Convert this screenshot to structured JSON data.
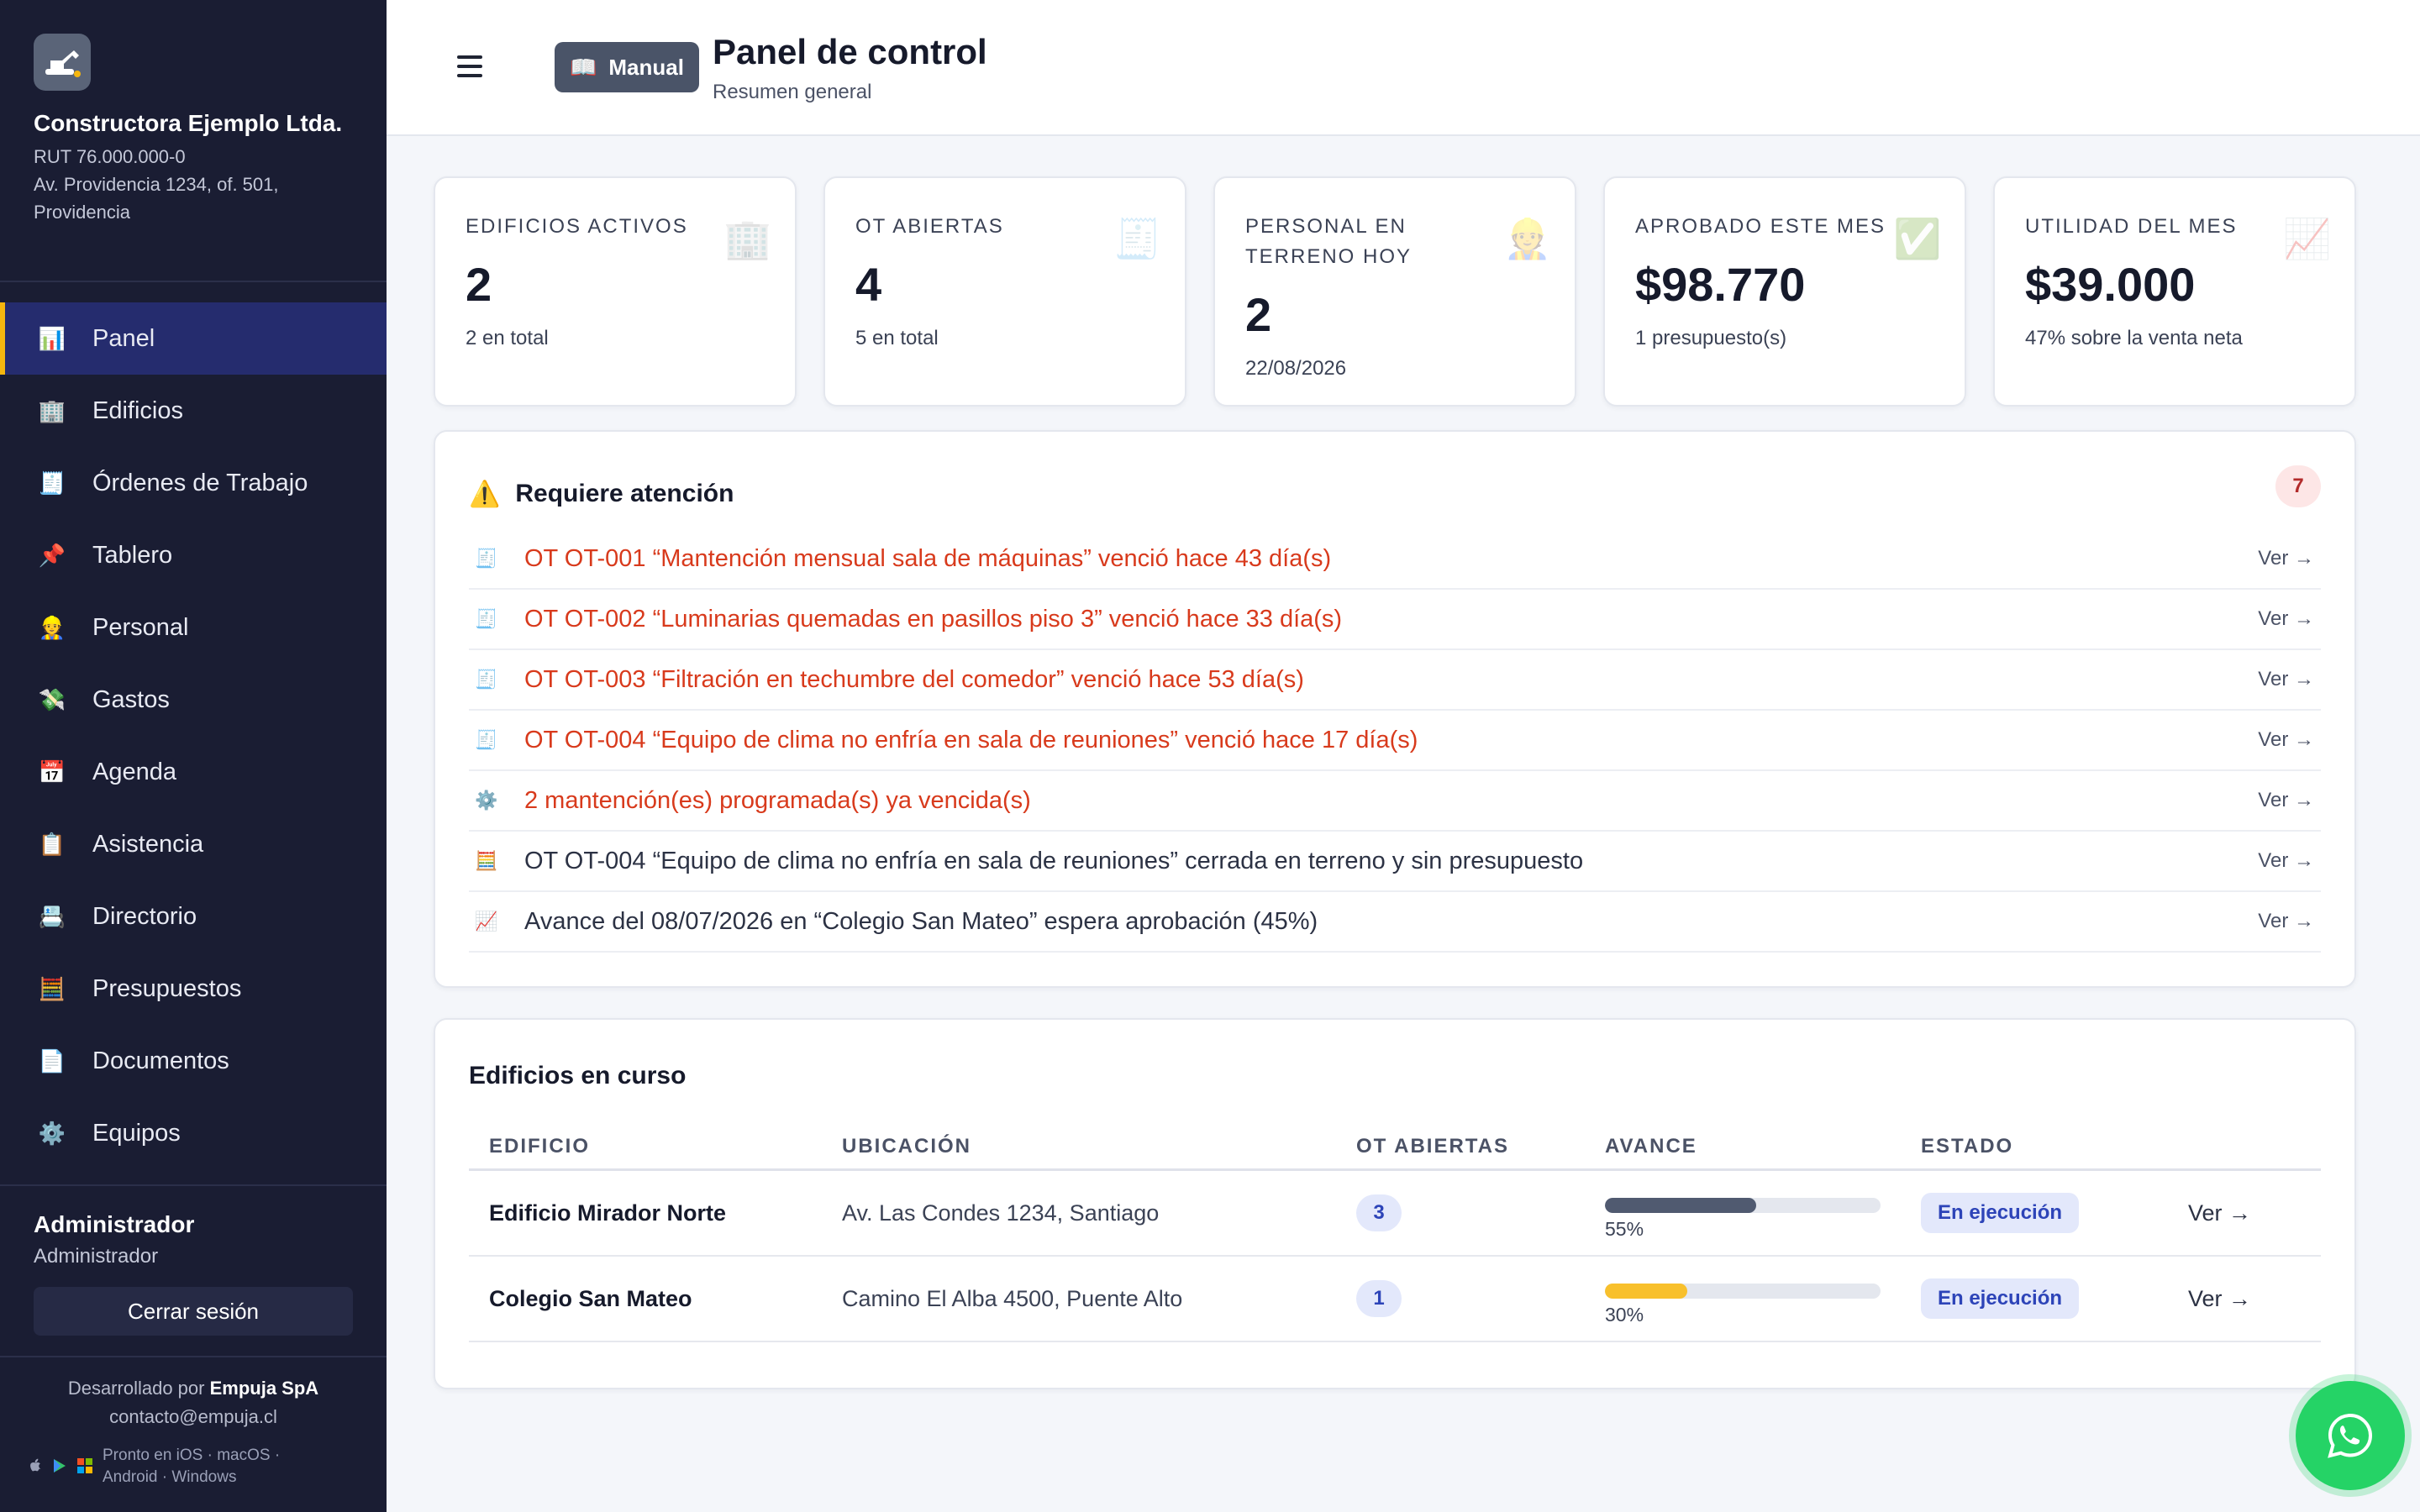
{
  "sidebar": {
    "company_name": "Constructora Ejemplo Ltda.",
    "rut": "RUT 76.000.000-0",
    "address": "Av. Providencia 1234, of. 501, Providencia",
    "nav": [
      {
        "label": "Panel",
        "icon": "bar-chart-icon",
        "active": true
      },
      {
        "label": "Edificios",
        "icon": "building-icon"
      },
      {
        "label": "Órdenes de Trabajo",
        "icon": "receipt-icon"
      },
      {
        "label": "Tablero",
        "icon": "pushpin-icon"
      },
      {
        "label": "Personal",
        "icon": "worker-icon"
      },
      {
        "label": "Gastos",
        "icon": "money-wings-icon"
      },
      {
        "label": "Agenda",
        "icon": "calendar-icon"
      },
      {
        "label": "Asistencia",
        "icon": "clipboard-icon"
      },
      {
        "label": "Directorio",
        "icon": "card-index-icon"
      },
      {
        "label": "Presupuestos",
        "icon": "abacus-icon"
      },
      {
        "label": "Documentos",
        "icon": "document-icon"
      },
      {
        "label": "Equipos",
        "icon": "gear-icon"
      }
    ],
    "user": {
      "name": "Administrador",
      "role": "Administrador",
      "logout_label": "Cerrar sesión"
    },
    "dev": {
      "prefix": "Desarrollado por",
      "company": "Empuja SpA",
      "email": "contacto@empuja.cl",
      "platforms_line1": "Pronto en iOS · macOS ·",
      "platforms_line2": "Android · Windows"
    }
  },
  "header": {
    "manual_label": "Manual",
    "title": "Panel de control",
    "subtitle": "Resumen general"
  },
  "stats": [
    {
      "label": "EDIFICIOS ACTIVOS",
      "value": "2",
      "sub": "2 en total",
      "icon": "building-icon"
    },
    {
      "label": "OT ABIERTAS",
      "value": "4",
      "sub": "5 en total",
      "icon": "receipt-icon"
    },
    {
      "label": "PERSONAL EN TERRENO HOY",
      "value": "2",
      "sub": "22/08/2026",
      "icon": "worker-icon"
    },
    {
      "label": "APROBADO ESTE MES",
      "value": "$98.770",
      "sub": "1 presupuesto(s)",
      "icon": "check-icon"
    },
    {
      "label": "UTILIDAD DEL MES",
      "value": "$39.000",
      "sub": "47% sobre la venta neta",
      "icon": "chart-up-icon"
    }
  ],
  "attention": {
    "title": "Requiere atención",
    "count": "7",
    "link_label": "Ver →",
    "items": [
      {
        "text": "OT OT-001 “Mantención mensual sala de máquinas” venció hace 43 día(s)",
        "icon": "receipt-icon",
        "tone": "red"
      },
      {
        "text": "OT OT-002 “Luminarias quemadas en pasillos piso 3” venció hace 33 día(s)",
        "icon": "receipt-icon",
        "tone": "red"
      },
      {
        "text": "OT OT-003 “Filtración en techumbre del comedor” venció hace 53 día(s)",
        "icon": "receipt-icon",
        "tone": "red"
      },
      {
        "text": "OT OT-004 “Equipo de clima no enfría en sala de reuniones” venció hace 17 día(s)",
        "icon": "receipt-icon",
        "tone": "red"
      },
      {
        "text": "2 mantención(es) programada(s) ya vencida(s)",
        "icon": "gear-icon",
        "tone": "red"
      },
      {
        "text": "OT OT-004 “Equipo de clima no enfría en sala de reuniones” cerrada en terreno y sin presupuesto",
        "icon": "abacus-icon",
        "tone": "dark"
      },
      {
        "text": "Avance del 08/07/2026 en “Colegio San Mateo” espera aprobación (45%)",
        "icon": "chart-up-icon",
        "tone": "dark"
      }
    ]
  },
  "buildings": {
    "title": "Edificios en curso",
    "columns": [
      "EDIFICIO",
      "UBICACIÓN",
      "OT ABIERTAS",
      "AVANCE",
      "ESTADO"
    ],
    "link_label": "Ver →",
    "rows": [
      {
        "name": "Edificio Mirador Norte",
        "location": "Av. Las Condes 1234, Santiago",
        "ot": "3",
        "progress": 55,
        "progress_label": "55%",
        "bar_color": "#505a70",
        "state": "En ejecución"
      },
      {
        "name": "Colegio San Mateo",
        "location": "Camino El Alba 4500, Puente Alto",
        "ot": "1",
        "progress": 30,
        "progress_label": "30%",
        "bar_color": "#f8c02c",
        "state": "En ejecución"
      }
    ]
  },
  "colors": {
    "sidebar_bg": "#1a1d33",
    "active_nav": "#252c6e",
    "active_accent": "#f5b60e",
    "alert_red": "#d83a1c",
    "badge_blue": "#2d44b8",
    "whatsapp": "#25d366"
  }
}
